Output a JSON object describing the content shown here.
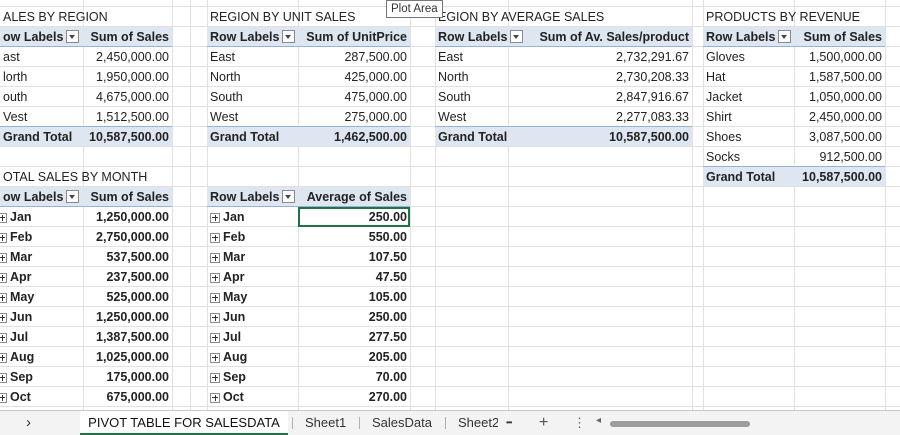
{
  "tooltip": "Plot Area",
  "regionSales": {
    "title": "ALES BY REGION",
    "hdr_label": "ow Labels",
    "hdr_value": "Sum of Sales",
    "rows": [
      {
        "label": "ast",
        "value": "2,450,000.00"
      },
      {
        "label": "lorth",
        "value": "1,950,000.00"
      },
      {
        "label": "outh",
        "value": "4,675,000.00"
      },
      {
        "label": "Vest",
        "value": "1,512,500.00"
      }
    ],
    "total_label": "Grand Total",
    "total_value": "10,587,500.00"
  },
  "unitSales": {
    "title": "REGION BY UNIT SALES",
    "hdr_label": "Row Labels",
    "hdr_value": "Sum of UnitPrice",
    "rows": [
      {
        "label": "East",
        "value": "287,500.00"
      },
      {
        "label": "North",
        "value": "425,000.00"
      },
      {
        "label": "South",
        "value": "475,000.00"
      },
      {
        "label": "West",
        "value": "275,000.00"
      }
    ],
    "total_label": "Grand Total",
    "total_value": "1,462,500.00"
  },
  "avgSales": {
    "title": "EGION BY AVERAGE SALES",
    "hdr_label": "Row Labels",
    "hdr_value": "Sum of Av. Sales/product",
    "rows": [
      {
        "label": "East",
        "value": "2,732,291.67"
      },
      {
        "label": "North",
        "value": "2,730,208.33"
      },
      {
        "label": "South",
        "value": "2,847,916.67"
      },
      {
        "label": "West",
        "value": "2,277,083.33"
      }
    ],
    "total_label": "Grand Total",
    "total_value": "10,587,500.00"
  },
  "productRevenue": {
    "title": "PRODUCTS BY REVENUE",
    "hdr_label": "Row Labels",
    "hdr_value": "Sum of Sales",
    "rows": [
      {
        "label": "Gloves",
        "value": "1,500,000.00"
      },
      {
        "label": "Hat",
        "value": "1,587,500.00"
      },
      {
        "label": "Jacket",
        "value": "1,050,000.00"
      },
      {
        "label": "Shirt",
        "value": "2,450,000.00"
      },
      {
        "label": "Shoes",
        "value": "3,087,500.00"
      },
      {
        "label": "Socks",
        "value": "912,500.00"
      }
    ],
    "total_label": "Grand Total",
    "total_value": "10,587,500.00"
  },
  "monthSales": {
    "title": "OTAL SALES BY MONTH",
    "hdr_label": "ow Labels",
    "hdr_value": "Sum of Sales",
    "rows": [
      {
        "label": "Jan",
        "value": "1,250,000.00"
      },
      {
        "label": "Feb",
        "value": "2,750,000.00"
      },
      {
        "label": "Mar",
        "value": "537,500.00"
      },
      {
        "label": "Apr",
        "value": "237,500.00"
      },
      {
        "label": "May",
        "value": "525,000.00"
      },
      {
        "label": "Jun",
        "value": "1,250,000.00"
      },
      {
        "label": "Jul",
        "value": "1,387,500.00"
      },
      {
        "label": "Aug",
        "value": "1,025,000.00"
      },
      {
        "label": "Sep",
        "value": "175,000.00"
      },
      {
        "label": "Oct",
        "value": "675,000.00"
      }
    ]
  },
  "monthAvg": {
    "hdr_label": "Row Labels",
    "hdr_value": "Average of Sales",
    "rows": [
      {
        "label": "Jan",
        "value": "250.00"
      },
      {
        "label": "Feb",
        "value": "550.00"
      },
      {
        "label": "Mar",
        "value": "107.50"
      },
      {
        "label": "Apr",
        "value": "47.50"
      },
      {
        "label": "May",
        "value": "105.00"
      },
      {
        "label": "Jun",
        "value": "250.00"
      },
      {
        "label": "Jul",
        "value": "277.50"
      },
      {
        "label": "Aug",
        "value": "205.00"
      },
      {
        "label": "Sep",
        "value": "70.00"
      },
      {
        "label": "Oct",
        "value": "270.00"
      }
    ]
  },
  "tabs": {
    "nav_prev": "›",
    "active": "PIVOT TABLE FOR SALESDATA",
    "sheet1": "Sheet1",
    "salesdata": "SalesData",
    "sheet2": "Sheet2",
    "more": "•••",
    "add": "+",
    "options": "⋮",
    "scroll_left": "◂"
  }
}
